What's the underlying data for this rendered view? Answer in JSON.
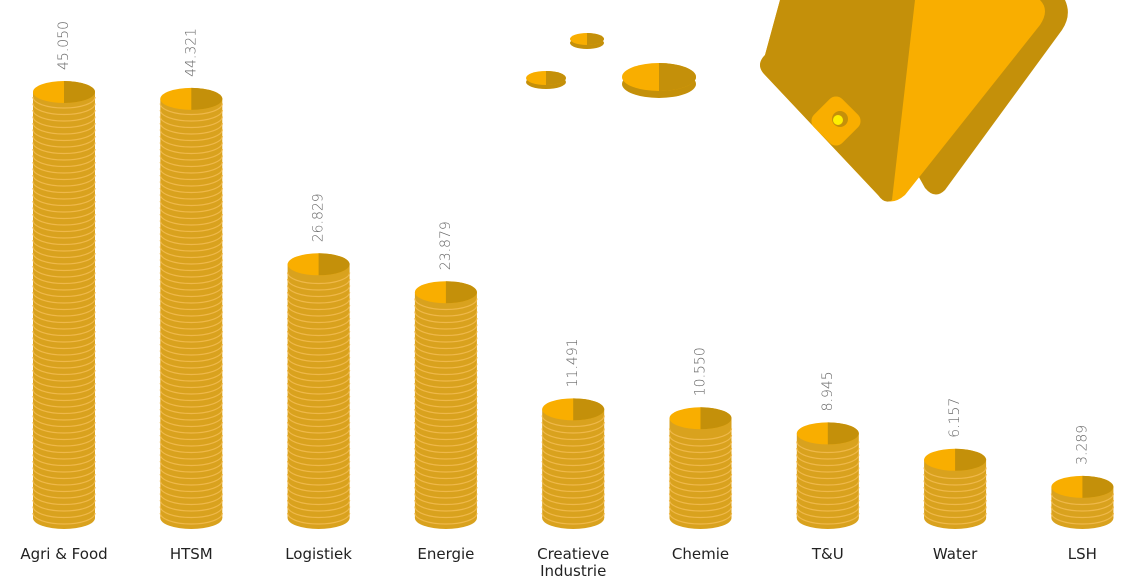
{
  "chart_data": {
    "type": "bar",
    "categories": [
      "Agri & Food",
      "HTSM",
      "Logistiek",
      "Energie",
      "Creatieve Industrie",
      "Chemie",
      "T&U",
      "Water",
      "LSH"
    ],
    "values": [
      45050,
      44321,
      26829,
      23879,
      11491,
      10550,
      8945,
      6157,
      3289
    ],
    "value_labels": [
      "45.050",
      "44.321",
      "26.829",
      "23.879",
      "11.491",
      "10.550",
      "8.945",
      "6.157",
      "3.289"
    ],
    "color": "#d9a21e"
  }
}
